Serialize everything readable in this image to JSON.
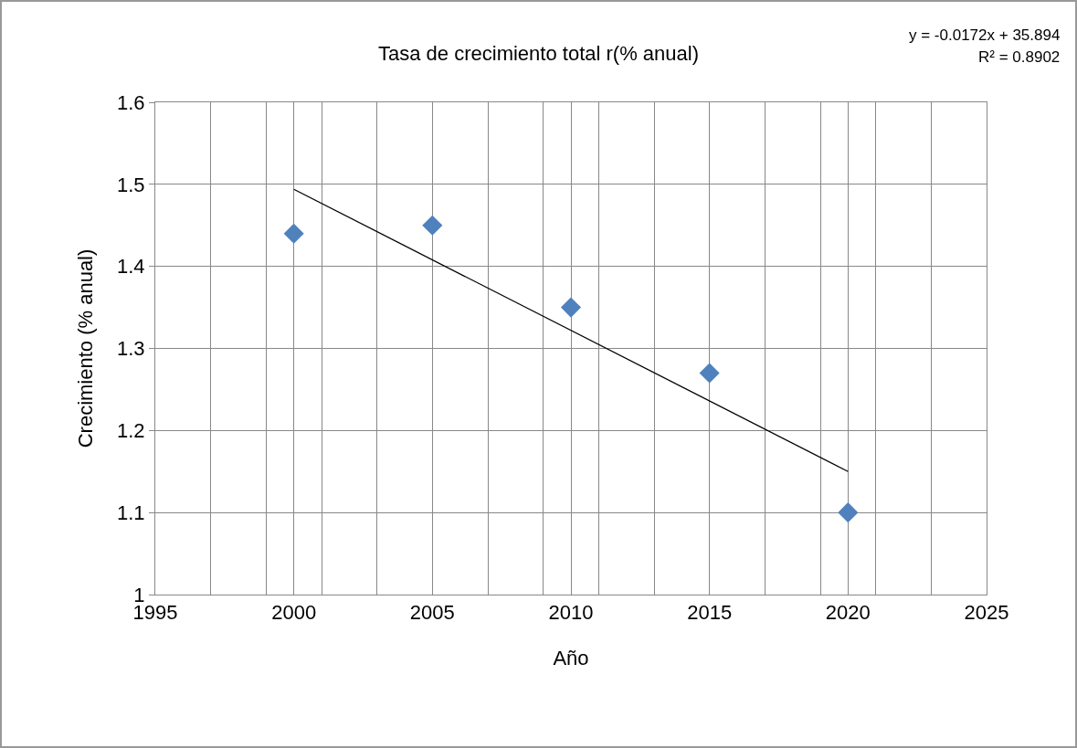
{
  "chart_data": {
    "type": "scatter",
    "title": "Tasa de crecimiento total r(% anual)",
    "xlabel": "Año",
    "ylabel": "Crecimiento (% anual)",
    "annotations": [
      "y = -0.0172x + 35.894",
      "R² = 0.8902"
    ],
    "x": [
      2000,
      2005,
      2010,
      2015,
      2020
    ],
    "series": [
      {
        "color": "#4f81bd",
        "values": [
          1.44,
          1.45,
          1.35,
          1.27,
          1.1
        ],
        "marker": "diamond"
      },
      {
        "type": "line",
        "color": "#000000",
        "x": [
          2000,
          2020
        ],
        "values": [
          1.494,
          1.15
        ],
        "marker": "none",
        "line_style": "solid"
      }
    ],
    "xlim": [
      1995,
      2025
    ],
    "xticks": [
      1995,
      {
        "value": 1997,
        "label": null
      },
      {
        "value": 1999,
        "label": null
      },
      2000,
      {
        "value": 2001,
        "label": null
      },
      {
        "value": 2003,
        "label": null
      },
      2005,
      {
        "value": 2007,
        "label": null
      },
      {
        "value": 2009,
        "label": null
      },
      2010,
      {
        "value": 2011,
        "label": null
      },
      {
        "value": 2013,
        "label": null
      },
      2015,
      {
        "value": 2017,
        "label": null
      },
      {
        "value": 2019,
        "label": null
      },
      2020,
      {
        "value": 2021,
        "label": null
      },
      {
        "value": 2023,
        "label": null
      },
      2025
    ],
    "ylim": [
      1,
      1.6
    ],
    "yticks": [
      1,
      1.1,
      1.2,
      1.3,
      1.4,
      1.5,
      1.6
    ],
    "grid": true
  }
}
